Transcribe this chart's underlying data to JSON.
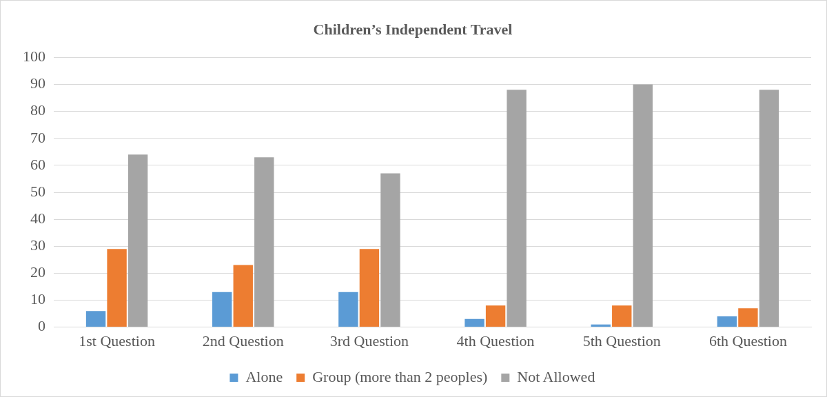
{
  "chart_data": {
    "type": "bar",
    "title": "Children’s Independent Travel",
    "categories": [
      "1st Question",
      "2nd Question",
      "3rd Question",
      "4th Question",
      "5th Question",
      "6th Question"
    ],
    "series": [
      {
        "name": "Alone",
        "color": "#5b9bd5",
        "values": [
          6,
          13,
          13,
          3,
          1,
          4
        ]
      },
      {
        "name": "Group (more than 2 peoples)",
        "color": "#ed7d31",
        "values": [
          29,
          23,
          29,
          8,
          8,
          7
        ]
      },
      {
        "name": "Not Allowed",
        "color": "#a5a5a5",
        "values": [
          64,
          63,
          57,
          88,
          90,
          88
        ]
      }
    ],
    "ylim": [
      0,
      100
    ],
    "yticks": [
      0,
      10,
      20,
      30,
      40,
      50,
      60,
      70,
      80,
      90,
      100
    ],
    "grid": "y",
    "legend": "bottom"
  }
}
